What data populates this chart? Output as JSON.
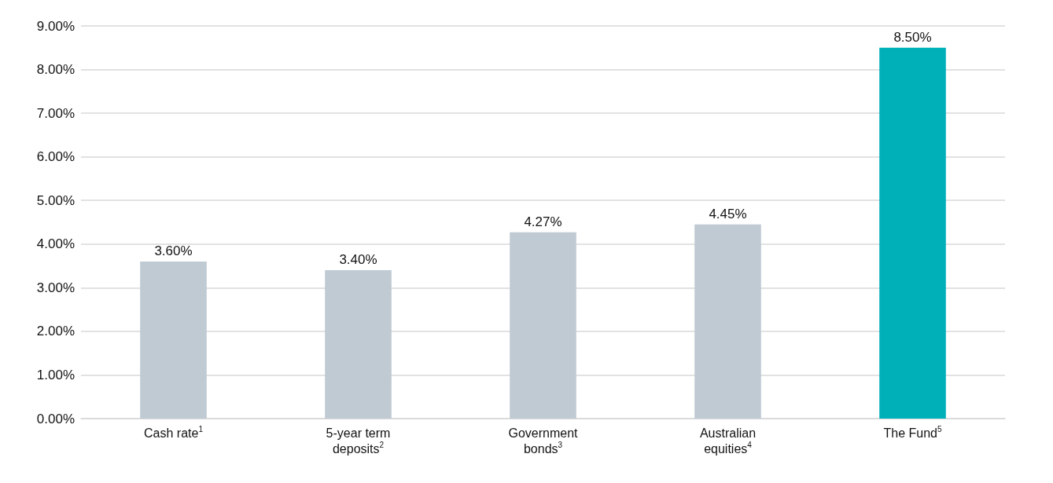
{
  "chart_data": {
    "type": "bar",
    "categories": [
      "Cash rate$^{1}$",
      "5-year term deposits$^{2}$",
      "Government bonds$^{3}$",
      "Australian equities$^{4}$",
      "The Fund$^{5}$"
    ],
    "values": [
      3.6,
      3.4,
      4.27,
      4.45,
      8.5
    ],
    "value_labels": [
      "3.60%",
      "3.40%",
      "4.27%",
      "4.45%",
      "8.50%"
    ],
    "colors": [
      "#c0cad3",
      "#c0cad3",
      "#c0cad3",
      "#c0cad3",
      "#00b0b9"
    ],
    "ylim": [
      0,
      9
    ],
    "yticks": [
      {
        "value": 0,
        "label": "0.00%"
      },
      {
        "value": 1,
        "label": "1.00%"
      },
      {
        "value": 2,
        "label": "2.00%"
      },
      {
        "value": 3,
        "label": "3.00%"
      },
      {
        "value": 4,
        "label": "4.00%"
      },
      {
        "value": 5,
        "label": "5.00%"
      },
      {
        "value": 6,
        "label": "6.00%"
      },
      {
        "value": 7,
        "label": "7.00%"
      },
      {
        "value": 8,
        "label": "8.00%"
      },
      {
        "value": 9,
        "label": "9.00%"
      }
    ],
    "grid": "y"
  }
}
